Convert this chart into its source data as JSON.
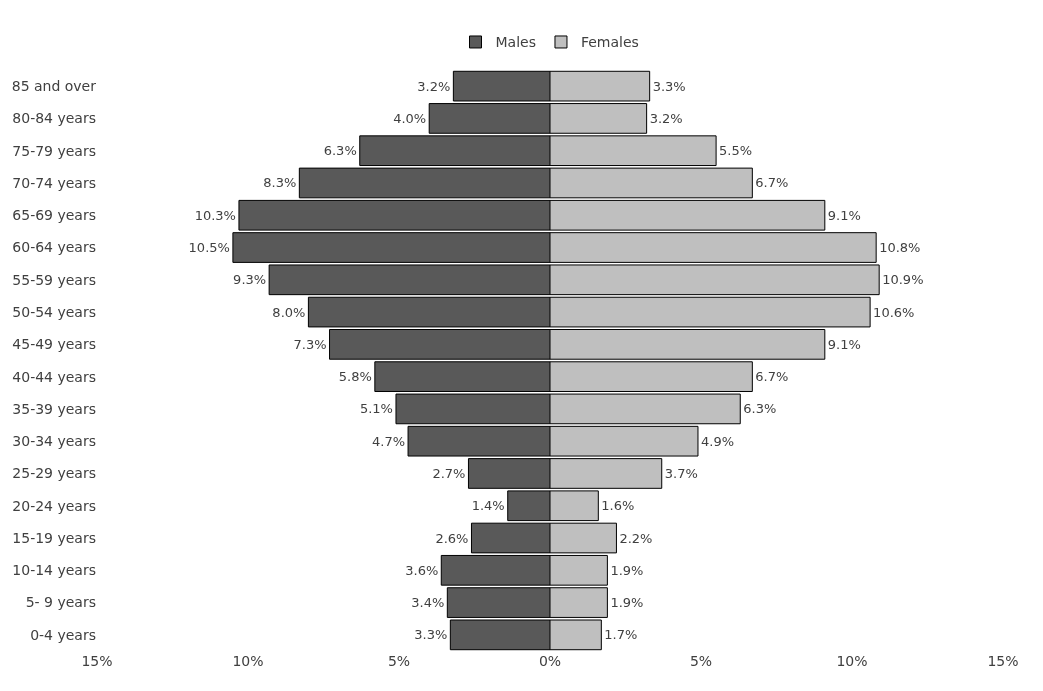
{
  "chart_data": [
    {
      "type": "bar",
      "orientation": "horizontal",
      "legend": "top",
      "categories": [
        "85 and over",
        "80-84 years",
        "75-79 years",
        "70-74 years",
        "65-69 years",
        "60-64 years",
        "55-59 years",
        "50-54 years",
        "45-49 years",
        "40-44 years",
        "35-39 years",
        "30-34 years",
        "25-29 years",
        "20-24 years",
        "15-19 years",
        "10-14 years",
        "5- 9 years",
        "0-4 years"
      ],
      "series": [
        {
          "name": "Males",
          "color": "#595959",
          "values": [
            3.2,
            4.0,
            6.3,
            8.3,
            10.3,
            10.5,
            9.3,
            8.0,
            7.3,
            5.8,
            5.1,
            4.7,
            2.7,
            1.4,
            2.6,
            3.6,
            3.4,
            3.3
          ],
          "value_labels": [
            "3.2%",
            "4.0%",
            "6.3%",
            "8.3%",
            "10.3%",
            "10.5%",
            "9.3%",
            "8.0%",
            "7.3%",
            "5.8%",
            "5.1%",
            "4.7%",
            "2.7%",
            "1.4%",
            "2.6%",
            "3.6%",
            "3.4%",
            "3.3%"
          ]
        }
      ],
      "xlim": [
        15,
        0
      ],
      "xticks": [
        {
          "value": 15,
          "label": "15%"
        },
        {
          "value": 10,
          "label": "10%"
        },
        {
          "value": 5,
          "label": "5%"
        },
        {
          "value": 0,
          "label": "0%"
        }
      ]
    },
    {
      "type": "bar",
      "orientation": "horizontal",
      "legend": "top",
      "tick_labels": "x",
      "categories": [
        "85 and over",
        "80-84 years",
        "75-79 years",
        "70-74 years",
        "65-69 years",
        "60-64 years",
        "55-59 years",
        "50-54 years",
        "45-49 years",
        "40-44 years",
        "35-39 years",
        "30-34 years",
        "25-29 years",
        "20-24 years",
        "15-19 years",
        "10-14 years",
        "5- 9 years",
        "0-4 years"
      ],
      "series": [
        {
          "name": "Females",
          "color": "#bfbfbf",
          "values": [
            3.3,
            3.2,
            5.5,
            6.7,
            9.1,
            10.8,
            10.9,
            10.6,
            9.1,
            6.7,
            6.3,
            4.9,
            3.7,
            1.6,
            2.2,
            1.9,
            1.9,
            1.7
          ],
          "value_labels": [
            "3.3%",
            "3.2%",
            "5.5%",
            "6.7%",
            "9.1%",
            "10.8%",
            "10.9%",
            "10.6%",
            "9.1%",
            "6.7%",
            "6.3%",
            "4.9%",
            "3.7%",
            "1.6%",
            "2.2%",
            "1.9%",
            "1.9%",
            "1.7%"
          ]
        }
      ],
      "xlim": [
        0,
        15
      ],
      "xticks": [
        {
          "value": 5,
          "label": "5%"
        },
        {
          "value": 10,
          "label": "10%"
        },
        {
          "value": 15,
          "label": "15%"
        }
      ]
    }
  ]
}
